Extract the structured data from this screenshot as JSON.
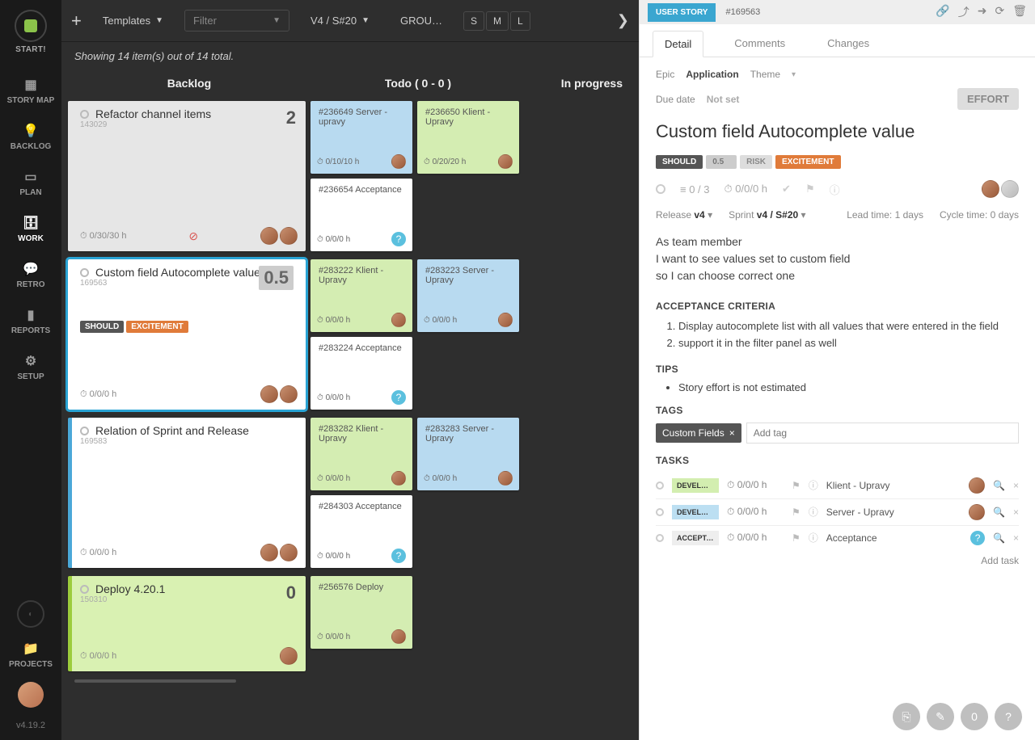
{
  "sidebar": {
    "start": "START!",
    "items": [
      {
        "icon": "▦",
        "label": "STORY MAP"
      },
      {
        "icon": "💡",
        "label": "BACKLOG"
      },
      {
        "icon": "▭",
        "label": "PLAN"
      },
      {
        "icon": "🗄",
        "label": "WORK"
      },
      {
        "icon": "💬",
        "label": "RETRO"
      },
      {
        "icon": "▮",
        "label": "REPORTS"
      },
      {
        "icon": "⚙",
        "label": "SETUP"
      }
    ],
    "activeIndex": 3,
    "projects": "PROJECTS",
    "version": "v4.19.2"
  },
  "toolbar": {
    "templates": "Templates",
    "filter_placeholder": "Filter",
    "sprint": "V4 / S#20",
    "group": "GROU…",
    "sizes": [
      "S",
      "M",
      "L"
    ]
  },
  "status": "Showing 14 item(s) out of 14 total.",
  "columns": {
    "backlog": "Backlog",
    "todo": "Todo   (   0  -  0   )",
    "progress": "In progress"
  },
  "rows": [
    {
      "backlog": {
        "id": "143029",
        "title": "Refactor channel items",
        "num": "2",
        "hours": "0/30/30 h",
        "variant": "gray",
        "alert": true,
        "avatars": 2
      },
      "todo": [
        [
          {
            "color": "blue",
            "text": "#236649 Server - upravy",
            "hours": "0/10/10 h",
            "av": true
          },
          {
            "color": "green",
            "text": "#236650 Klient - Upravy",
            "hours": "0/20/20 h",
            "av": true
          }
        ],
        [
          {
            "color": "white",
            "text": "#236654 Acceptance",
            "hours": "0/0/0 h",
            "q": true
          }
        ]
      ]
    },
    {
      "backlog": {
        "id": "169563",
        "title": "Custom field Autocomplete value",
        "hours": "0/0/0 h",
        "selected": true,
        "tags": [
          "SHOULD",
          "0.5",
          "EXCITEMENT"
        ],
        "avatars": 2
      },
      "todo": [
        [
          {
            "color": "green",
            "text": "#283222 Klient - Upravy",
            "hours": "0/0/0 h",
            "av": true
          },
          {
            "color": "blue",
            "text": "#283223 Server - Upravy",
            "hours": "0/0/0 h",
            "av": true
          }
        ],
        [
          {
            "color": "white",
            "text": "#283224 Acceptance",
            "hours": "0/0/0 h",
            "q": true
          }
        ]
      ]
    },
    {
      "backlog": {
        "id": "169583",
        "title": "Relation of Sprint and Release",
        "hours": "0/0/0 h",
        "avatars": 2,
        "leftbar": "#4aa8d8"
      },
      "todo": [
        [
          {
            "color": "green",
            "text": "#283282 Klient - Upravy",
            "hours": "0/0/0 h",
            "av": true
          },
          {
            "color": "blue",
            "text": "#283283 Server - Upravy",
            "hours": "0/0/0 h",
            "av": true
          }
        ],
        [
          {
            "color": "white",
            "text": "#284303 Acceptance",
            "hours": "0/0/0 h",
            "q": true
          }
        ]
      ]
    },
    {
      "backlog": {
        "id": "150310",
        "title": "Deploy 4.20.1",
        "num": "0",
        "hours": "0/0/0 h",
        "variant": "green",
        "avatars": 1
      },
      "todo": [
        [
          {
            "color": "green",
            "text": "#256576 Deploy",
            "hours": "0/0/0 h",
            "av": true
          }
        ]
      ]
    }
  ],
  "panel": {
    "badge": "USER STORY",
    "crumb": "#169563",
    "tabs": [
      "Detail",
      "Comments",
      "Changes"
    ],
    "epic_label": "Epic",
    "epic": "Application",
    "theme": "Theme",
    "due_label": "Due date",
    "due": "Not set",
    "effort": "EFFORT",
    "title": "Custom field Autocomplete value",
    "chips": {
      "should": "SHOULD",
      "num": "0.5",
      "risk": "RISK",
      "exc": "EXCITEMENT"
    },
    "stats": {
      "progress": "0 / 3",
      "hours": "0/0/0 h"
    },
    "release_label": "Release",
    "release": "v4",
    "sprint_label": "Sprint",
    "sprint": "v4 / S#20",
    "lead_label": "Lead time:",
    "lead": "1 days",
    "cycle_label": "Cycle time:",
    "cycle": "0 days",
    "desc": [
      "As team member",
      "I want to see values set to custom field",
      "so I can choose correct one"
    ],
    "criteria_h": "ACCEPTANCE CRITERIA",
    "criteria": [
      "Display autocomplete list with all values that were entered in the field",
      "support it in the filter panel as well"
    ],
    "tips_h": "TIPS",
    "tips": [
      "Story effort is not estimated"
    ],
    "tags_h": "TAGS",
    "tag": "Custom Fields",
    "tag_placeholder": "Add tag",
    "tasks_h": "TASKS",
    "tasks": [
      {
        "lbl": "DEVELOPM…",
        "cls": "dev-g",
        "hours": "0/0/0 h",
        "name": "Klient - Upravy",
        "av": true
      },
      {
        "lbl": "DEVELOPM…",
        "cls": "dev-b",
        "hours": "0/0/0 h",
        "name": "Server - Upravy",
        "av": true
      },
      {
        "lbl": "ACCEPTAN…",
        "cls": "acc",
        "hours": "0/0/0 h",
        "name": "Acceptance",
        "q": true
      }
    ],
    "add_task": "Add task",
    "fab_count": "0"
  }
}
